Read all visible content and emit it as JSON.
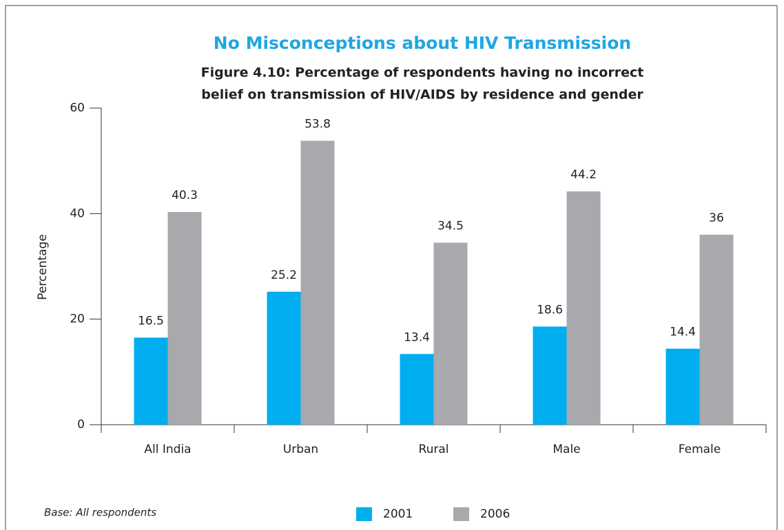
{
  "chart_data": {
    "type": "bar",
    "title": "No Misconceptions about HIV Transmission",
    "subtitle": [
      "Figure 4.10: Percentage of respondents having no incorrect",
      "belief on transmission of HIV/AIDS by residence and gender"
    ],
    "y_label": "Percentage",
    "footnote": "Base: All respondents",
    "categories": [
      "All India",
      "Urban",
      "Rural",
      "Male",
      "Female"
    ],
    "series": [
      {
        "name": "2001",
        "color": "#00aeef",
        "values": [
          16.5,
          25.2,
          13.4,
          18.6,
          14.4
        ]
      },
      {
        "name": "2006",
        "color": "#a7a9ac",
        "values": [
          40.3,
          53.8,
          34.5,
          44.2,
          36
        ]
      }
    ],
    "ylim": [
      0,
      60
    ],
    "yticks": [
      0,
      20,
      40,
      60
    ]
  }
}
